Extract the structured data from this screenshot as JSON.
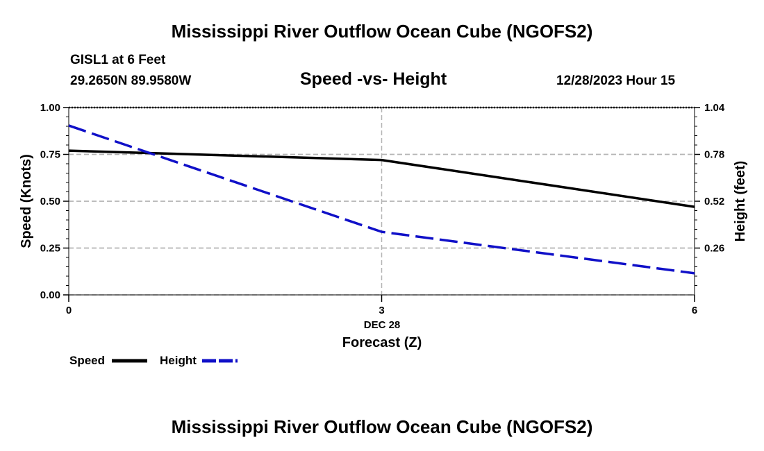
{
  "header": {
    "title": "Mississippi River Outflow Ocean Cube (NGOFS2)",
    "station_line": "GISL1 at 6 Feet",
    "coordinates": "29.2650N  89.9580W",
    "subtitle": "Speed -vs- Height",
    "datetime": "12/28/2023 Hour 15"
  },
  "footer": {
    "title": "Mississippi River Outflow Ocean Cube (NGOFS2)"
  },
  "chart_data": {
    "type": "line",
    "title": "Speed -vs- Height",
    "xlabel": "Forecast (Z)",
    "x_date_label": "DEC 28",
    "ylabel_left": "Speed (Knots)",
    "ylabel_right": "Height (feet)",
    "x": [
      0,
      3,
      6
    ],
    "x_ticks": [
      "0",
      "3",
      "6"
    ],
    "xlim": [
      0,
      6
    ],
    "ylim_left": [
      0,
      1
    ],
    "ylim_right": [
      0,
      1.04
    ],
    "y_ticks_left": [
      "0.00",
      "0.25",
      "0.50",
      "0.75",
      "1.00"
    ],
    "y_ticks_right": [
      "0.26",
      "0.52",
      "0.78",
      "1.04"
    ],
    "grid": true,
    "series": [
      {
        "name": "Speed",
        "axis": "left",
        "color": "#000000",
        "style": "solid",
        "values": [
          0.77,
          0.72,
          0.47
        ]
      },
      {
        "name": "Height",
        "axis": "right",
        "color": "#1010c8",
        "style": "dashed",
        "values": [
          0.94,
          0.35,
          0.12
        ]
      }
    ],
    "legend": [
      {
        "label": "Speed",
        "color": "#000000",
        "style": "solid"
      },
      {
        "label": "Height",
        "color": "#1010c8",
        "style": "dashed"
      }
    ]
  }
}
